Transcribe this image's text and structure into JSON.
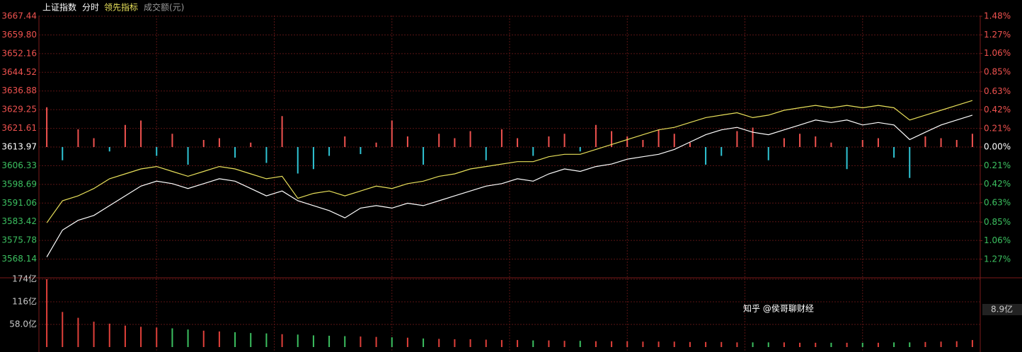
{
  "chart_data": [
    {
      "type": "line",
      "subtitle": "分时",
      "prev_close": 3613.97,
      "ylim": [
        3560.5,
        3667.44
      ],
      "yticks": [
        3667.44,
        {
          "value": 3659.8,
          "label": "3659.80"
        },
        3652.16,
        3644.52,
        3636.88,
        3629.25,
        3621.61,
        3613.97,
        3606.33,
        3598.69,
        3591.06,
        3583.42,
        3575.78,
        3568.14
      ],
      "y2lim": [
        -1.48,
        1.48
      ],
      "y2ticks": [
        {
          "value": 1.48,
          "label": "1.48%"
        },
        {
          "value": 1.27,
          "label": "1.27%"
        },
        {
          "value": 1.06,
          "label": "1.06%"
        },
        {
          "value": 0.85,
          "label": "0.85%"
        },
        {
          "value": 0.63,
          "label": "0.63%"
        },
        {
          "value": 0.42,
          "label": "0.42%"
        },
        {
          "value": 0.21,
          "label": "0.21%"
        },
        {
          "value": 0,
          "label": "0.00%"
        },
        {
          "value": -0.21,
          "label": "0.21%"
        },
        {
          "value": -0.42,
          "label": "0.42%"
        },
        {
          "value": -0.63,
          "label": "0.63%"
        },
        {
          "value": -0.85,
          "label": "0.85%"
        },
        {
          "value": -1.06,
          "label": "1.06%"
        },
        {
          "value": -1.27,
          "label": "1.27%"
        }
      ],
      "grid": true,
      "up_color": "#f0524f",
      "down_color": "#2fc4d4",
      "flat_color": "#ffffff",
      "series": [
        {
          "name": "上证指数",
          "color": "#ffffff",
          "values": [
            3569,
            3580,
            3584,
            3586,
            3590,
            3594,
            3598,
            3600,
            3599,
            3597,
            3599,
            3601,
            3600,
            3597,
            3594,
            3596,
            3592,
            3590,
            3588,
            3585,
            3589,
            3590,
            3589,
            3591,
            3590,
            3592,
            3594,
            3596,
            3598,
            3599,
            3601,
            3600,
            3603,
            3605,
            3604,
            3606,
            3607,
            3609,
            3610,
            3611,
            3613,
            3616,
            3619,
            3621,
            3622,
            3620,
            3619,
            3621,
            3623,
            3625,
            3624,
            3625,
            3623,
            3624,
            3623,
            3617,
            3620,
            3623,
            3625,
            3627
          ]
        },
        {
          "name": "领先指标",
          "color": "#e8e05a",
          "values": [
            3583,
            3592,
            3594,
            3597,
            3601,
            3603,
            3605,
            3606,
            3604,
            3602,
            3604,
            3606,
            3605,
            3603,
            3601,
            3602,
            3593,
            3595,
            3596,
            3594,
            3596,
            3598,
            3597,
            3599,
            3600,
            3602,
            3603,
            3605,
            3606,
            3607,
            3608,
            3608,
            3610,
            3611,
            3611,
            3613,
            3615,
            3617,
            3619,
            3621,
            3622,
            3624,
            3626,
            3627,
            3628,
            3626,
            3627,
            3629,
            3630,
            3631,
            3630,
            3631,
            3630,
            3631,
            3630,
            3625,
            3627,
            3629,
            3631,
            3633
          ]
        }
      ],
      "bars": {
        "axis": "y2",
        "values": [
          0.45,
          -0.15,
          0.2,
          0.1,
          -0.05,
          0.25,
          0.3,
          -0.1,
          0.15,
          -0.2,
          0.08,
          0.1,
          -0.12,
          0.05,
          -0.18,
          0.35,
          -0.3,
          -0.25,
          -0.1,
          0.12,
          -0.08,
          0.05,
          0.3,
          0.12,
          -0.2,
          0.15,
          0.1,
          0.18,
          -0.15,
          0.2,
          0.1,
          -0.1,
          0.12,
          0.15,
          -0.05,
          0.25,
          0.18,
          0.12,
          0.08,
          0.2,
          0.15,
          0.05,
          -0.2,
          -0.1,
          0.18,
          0.22,
          -0.15,
          0.1,
          0.15,
          0.12,
          0.05,
          -0.25,
          0.08,
          0.1,
          -0.12,
          -0.35,
          0.12,
          0.1,
          0.08,
          0.15
        ]
      }
    },
    {
      "type": "bar",
      "title": "成交额(元)",
      "readout": "8.9亿",
      "ylim": [
        0,
        174
      ],
      "yticks": [
        {
          "value": 174,
          "label": "174亿"
        },
        {
          "value": 116,
          "label": "116亿"
        },
        {
          "value": 58,
          "label": "58.0亿"
        }
      ],
      "up_color": "#e0403a",
      "down_color": "#3cc060",
      "values": [
        174,
        90,
        75,
        65,
        60,
        55,
        52,
        50,
        48,
        45,
        42,
        40,
        38,
        36,
        35,
        33,
        32,
        30,
        29,
        28,
        27,
        26,
        25,
        24,
        22,
        21,
        20,
        20,
        19,
        18,
        18,
        17,
        17,
        16,
        16,
        15,
        15,
        15,
        14,
        14,
        14,
        13,
        13,
        13,
        12,
        12,
        12,
        12,
        11,
        11,
        11,
        11,
        11,
        11,
        12,
        12,
        13,
        14,
        15,
        18
      ]
    }
  ],
  "watermark": "知乎 @侯哥聊财经"
}
